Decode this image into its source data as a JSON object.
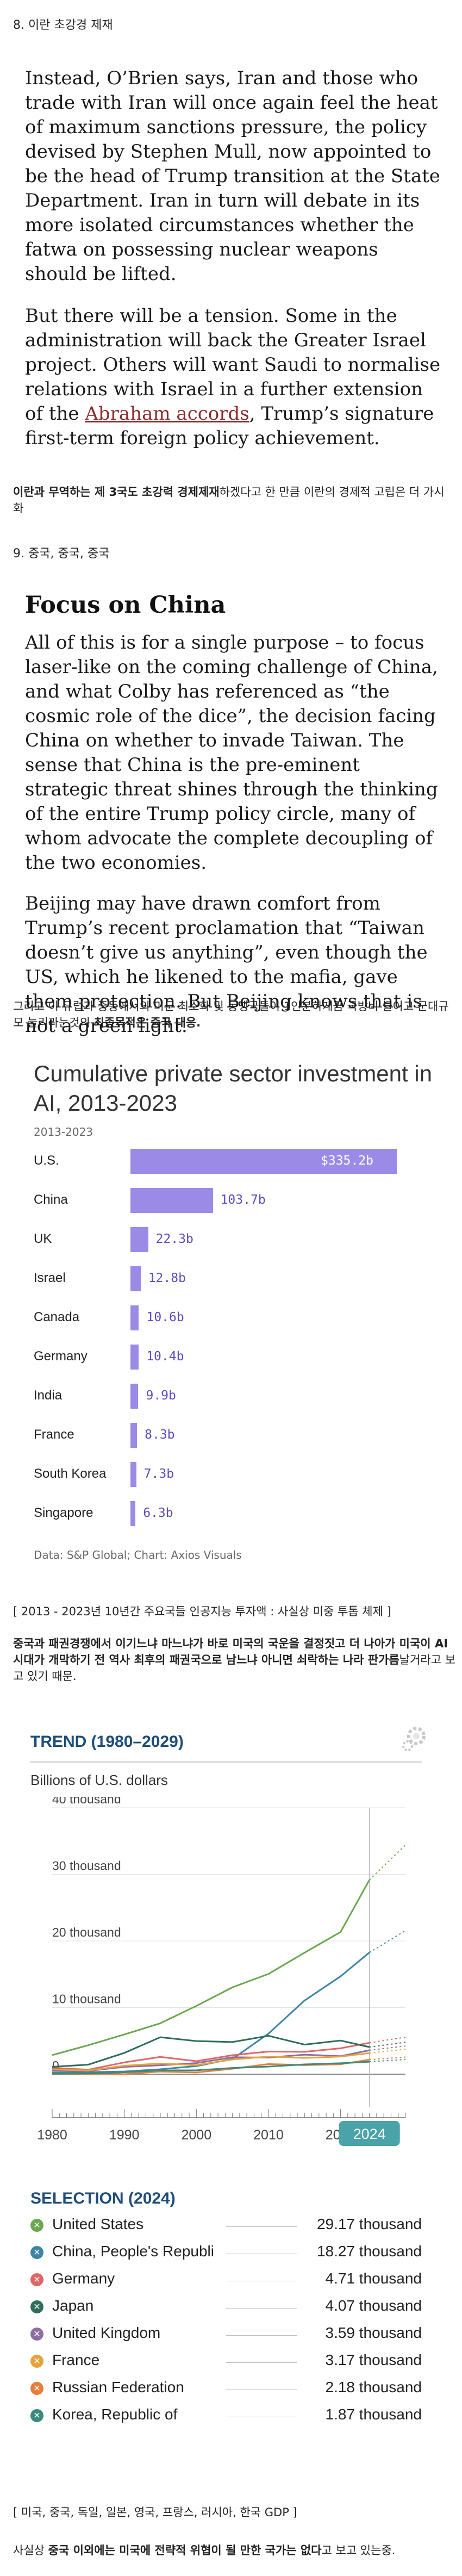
{
  "section8": "8. 이란 초강경 제재",
  "article1": {
    "p1": "Instead, O’Brien says, Iran and those who trade with Iran will once again feel the heat of maximum sanctions pressure, the policy devised by Stephen Mull, now appointed to be the head of Trump transition at the State Department. Iran in turn will debate in its more isolated circumstances whether the fatwa on possessing nuclear weapons should be lifted.",
    "p2_pre": "But there will be a tension. Some in the administration will back the Greater Israel project. Others will want Saudi to normalise relations with Israel in a further extension of the ",
    "p2_link": "Abraham accords",
    "p2_post": ", Trump’s signature first-term foreign policy achievement."
  },
  "note1": {
    "bold": "이란과 무역하는 제 3국도 초강력 경제제재",
    "rest": "하겠다고 한 만큼 이란의 경제적 고립은 더 가시화"
  },
  "section9": "9. 중국, 중국, 중국",
  "article2": {
    "heading": "Focus on China",
    "p1": "All of this is for a single purpose – to focus laser-like on the coming challenge of China, and what Colby has referenced as “the cosmic role of the dice”, the decision facing China on whether to invade Taiwan. The sense that China is the pre-eminent strategic threat shines through the thinking of the entire Trump policy circle, many of whom advocate the complete decoupling of the two economies.",
    "p2": "Beijing may have drawn comfort from Trump’s recent proclamation that “Taiwan doesn’t give us anything”, even though the US, which he likened to the mafia, gave them protection. But Beijing knows that is not a green light."
  },
  "note2": {
    "rest": "그리고 이 유럽과 중동에서의 미군 최소화 및 동맹국들이 1인분하게끔 국방비 늘이고 군대규모 늘리라는것의 ",
    "bold": "최종목적은 중국 대응."
  },
  "axios": {
    "title": "Cumulative private sector investment in AI, 2013-2023",
    "subtitle": "2013-2023",
    "source": "Data: S&P Global; Chart: Axios Visuals",
    "bar_color": "#9b8be6"
  },
  "caption1": "[ 2013 - 2023년 10년간 주요국들 인공지능 투자액 : 사실상 미중 투톱 체제 ]",
  "note3": {
    "bold": "중국과 패권경쟁에서 이기느냐 마느냐가 바로 미국의 국운을 결정짓고 더 나아가 미국이 AI 시대가 개막하기 전 역사 최후의 패권국으로 남느냐 아니면 쇠락하는 나라 판가름",
    "rest": "날거라고 보고 있기 때문."
  },
  "trend": {
    "title": "TREND (1980–2029)",
    "ylabel": "Billions of U.S. dollars",
    "yticks": [
      "40 thousand",
      "30 thousand",
      "20 thousand",
      "10 thousand",
      "0"
    ],
    "xticks": [
      "1980",
      "1990",
      "2000",
      "2010",
      "2020"
    ],
    "badge": "2024",
    "selection_title": "SELECTION (2024)",
    "selection": [
      {
        "name": "United States",
        "value": "29.17 thousand",
        "color": "#6aa84f"
      },
      {
        "name": "China, People's Republi",
        "value": "18.27 thousand",
        "color": "#3d85a6"
      },
      {
        "name": "Germany",
        "value": "4.71 thousand",
        "color": "#e06666"
      },
      {
        "name": "Japan",
        "value": "4.07 thousand",
        "color": "#2e6e5a"
      },
      {
        "name": "United Kingdom",
        "value": "3.59 thousand",
        "color": "#8e6e9e"
      },
      {
        "name": "France",
        "value": "3.17 thousand",
        "color": "#e6a23c"
      },
      {
        "name": "Russian Federation",
        "value": "2.18 thousand",
        "color": "#e67e3c"
      },
      {
        "name": "Korea, Republic of",
        "value": "1.87 thousand",
        "color": "#3c8a7e"
      }
    ]
  },
  "caption2": "[ 미국, 중국, 독일, 일본, 영국, 프랑스, 러시아, 한국 GDP ]",
  "note4": {
    "pre": "사실상 ",
    "bold": "중국 이외에는 미국에 전략적 위협이 될 만한 국가는 없다",
    "post": "고 보고 있는중."
  },
  "chart_data": [
    {
      "type": "bar",
      "title": "Cumulative private sector investment in AI, 2013-2023",
      "subtitle": "2013-2023",
      "categories": [
        "U.S.",
        "China",
        "UK",
        "Israel",
        "Canada",
        "Germany",
        "India",
        "France",
        "South Korea",
        "Singapore"
      ],
      "values": [
        335.2,
        103.7,
        22.3,
        12.8,
        10.6,
        10.4,
        9.9,
        8.3,
        7.3,
        6.3
      ],
      "labels": [
        "$335.2b",
        "103.7b",
        "22.3b",
        "12.8b",
        "10.6b",
        "10.4b",
        "9.9b",
        "8.3b",
        "7.3b",
        "6.3b"
      ],
      "xlim": [
        0,
        335.2
      ]
    },
    {
      "type": "line",
      "title": "TREND (1980–2029)",
      "ylabel": "Billions of U.S. dollars",
      "ylim": [
        0,
        40000
      ],
      "xlim": [
        1980,
        2029
      ],
      "x": [
        1980,
        1985,
        1990,
        1995,
        2000,
        2005,
        2010,
        2015,
        2020,
        2024
      ],
      "series": [
        {
          "name": "United States",
          "color": "#6aa84f",
          "values": [
            2860,
            4340,
            5960,
            7640,
            10250,
            13040,
            15050,
            18240,
            21350,
            29170
          ]
        },
        {
          "name": "China, People's Republi",
          "color": "#3d85a6",
          "values": [
            300,
            310,
            400,
            740,
            1210,
            2290,
            6090,
            11060,
            14690,
            18270
          ]
        },
        {
          "name": "Germany",
          "color": "#e06666",
          "values": [
            950,
            670,
            1770,
            2590,
            1950,
            2850,
            3400,
            3360,
            3890,
            4710
          ]
        },
        {
          "name": "Japan",
          "color": "#2e6e5a",
          "values": [
            1100,
            1430,
            3190,
            5550,
            4970,
            4830,
            5760,
            4440,
            5050,
            4070
          ]
        },
        {
          "name": "United Kingdom",
          "color": "#8e6e9e",
          "values": [
            600,
            490,
            1090,
            1340,
            1660,
            2540,
            2490,
            2930,
            2700,
            3590
          ]
        },
        {
          "name": "France",
          "color": "#e6a23c",
          "values": [
            700,
            550,
            1270,
            1600,
            1360,
            2200,
            2640,
            2440,
            2640,
            3170
          ]
        },
        {
          "name": "Russian Federation",
          "color": "#e67e3c",
          "values": [
            0,
            0,
            0,
            400,
            260,
            820,
            1520,
            1360,
            1490,
            2180
          ]
        },
        {
          "name": "Korea, Republic of",
          "color": "#3c8a7e",
          "values": [
            65,
            100,
            280,
            570,
            580,
            930,
            1140,
            1470,
            1640,
            1870
          ]
        }
      ]
    }
  ]
}
